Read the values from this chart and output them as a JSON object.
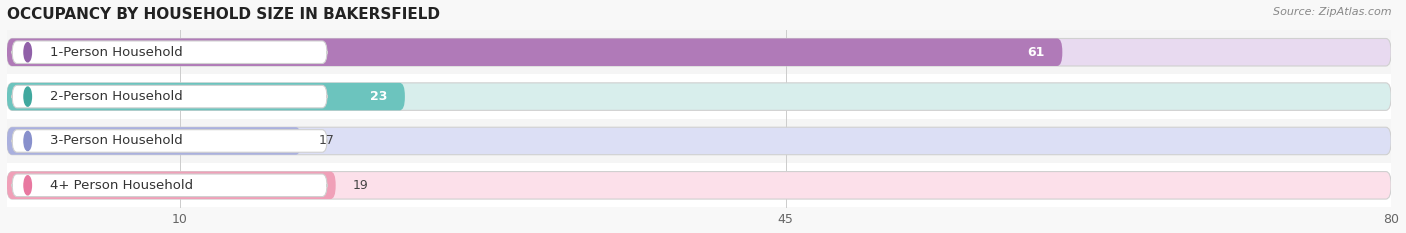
{
  "title": "OCCUPANCY BY HOUSEHOLD SIZE IN BAKERSFIELD",
  "source": "Source: ZipAtlas.com",
  "categories": [
    "1-Person Household",
    "2-Person Household",
    "3-Person Household",
    "4+ Person Household"
  ],
  "values": [
    61,
    23,
    17,
    19
  ],
  "bar_colors": [
    "#b07ab8",
    "#6cc4be",
    "#aab0de",
    "#f0a0b8"
  ],
  "bar_bg_colors": [
    "#e8daf0",
    "#d8eeec",
    "#dcdff5",
    "#fce0ea"
  ],
  "circle_colors": [
    "#9060a8",
    "#40a89e",
    "#8890cc",
    "#e878a0"
  ],
  "x_ticks": [
    10,
    45,
    80
  ],
  "xlim_data": [
    0,
    80
  ],
  "figsize": [
    14.06,
    2.33
  ],
  "dpi": 100,
  "title_fontsize": 11,
  "label_fontsize": 9.5,
  "tick_fontsize": 9,
  "value_fontsize": 9,
  "bar_height": 0.62,
  "row_bg_colors": [
    "#f5f5f5",
    "#ffffff",
    "#f5f5f5",
    "#ffffff"
  ]
}
